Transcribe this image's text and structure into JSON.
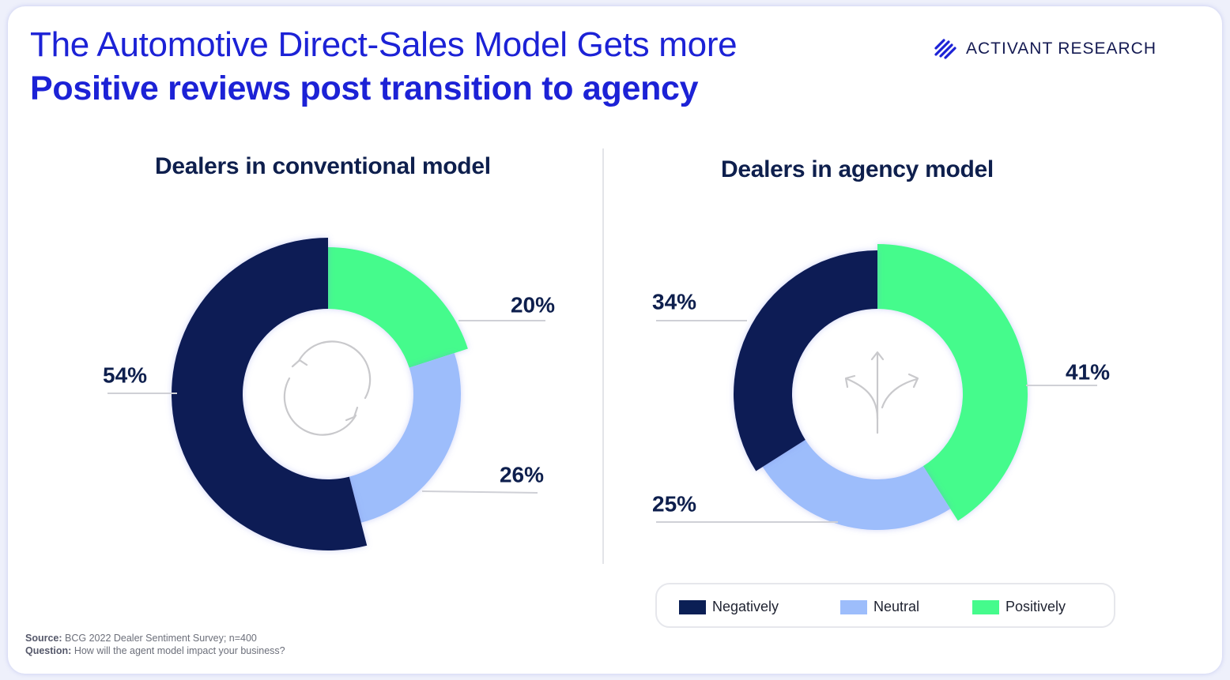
{
  "header": {
    "title_line1": "The Automotive Direct-Sales Model Gets more",
    "title_line2": "Positive reviews post transition to agency",
    "brand_primary": "ACTIVANT",
    "brand_secondary": "RESEARCH"
  },
  "colors": {
    "negatively": "#0b1f55",
    "neutral": "#9dbdfb",
    "positively": "#45fb8c",
    "title": "#1c22d6"
  },
  "chart_data": [
    {
      "type": "pie",
      "title": "Dealers in conventional model",
      "center_icon": "cycle-arrows-icon",
      "slices": [
        {
          "label": "Positively",
          "value": 20,
          "display": "20%"
        },
        {
          "label": "Neutral",
          "value": 26,
          "display": "26%"
        },
        {
          "label": "Negatively",
          "value": 54,
          "display": "54%"
        }
      ]
    },
    {
      "type": "pie",
      "title": "Dealers in agency model",
      "center_icon": "branching-arrows-icon",
      "slices": [
        {
          "label": "Positively",
          "value": 41,
          "display": "41%"
        },
        {
          "label": "Neutral",
          "value": 25,
          "display": "25%"
        },
        {
          "label": "Negatively",
          "value": 34,
          "display": "34%"
        }
      ]
    }
  ],
  "legend": {
    "items": [
      {
        "label": "Negatively",
        "color": "#0b1f55"
      },
      {
        "label": "Neutral",
        "color": "#9dbdfb"
      },
      {
        "label": "Positively",
        "color": "#45fb8c"
      }
    ]
  },
  "footer": {
    "source_label": "Source:",
    "source_text": "BCG 2022 Dealer Sentiment Survey; n=400",
    "question_label": "Question:",
    "question_text": "How will the agent model impact your business?"
  }
}
